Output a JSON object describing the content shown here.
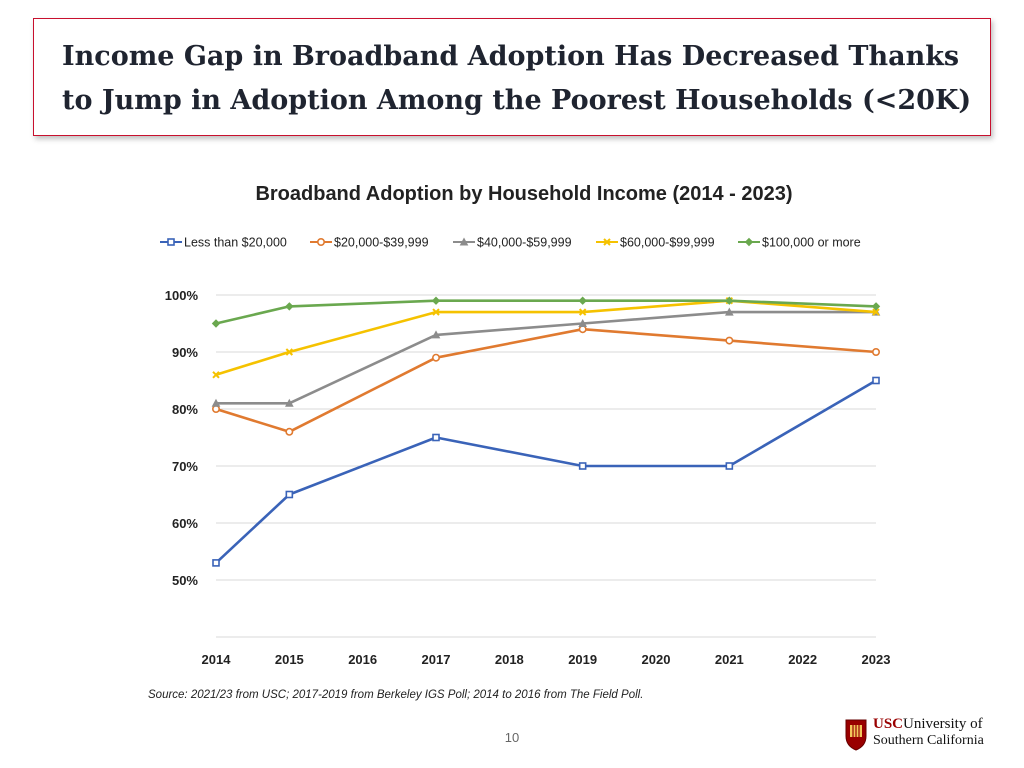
{
  "slide": {
    "title_line1": "Income Gap in Broadband Adoption Has Decreased Thanks",
    "title_line2": "to Jump in Adoption Among the Poorest Households (<20K)",
    "source": "Source: 2021/23 from USC; 2017-2019 from Berkeley IGS Poll; 2014 to 2016 from The Field Poll.",
    "page_number": "10",
    "logo": {
      "usc": "USC",
      "line1_rest": "University of",
      "line2": "Southern California"
    }
  },
  "chart_data": {
    "type": "line",
    "title": "Broadband Adoption by Household Income (2014 - 2023)",
    "x": [
      2014,
      2015,
      2016,
      2017,
      2018,
      2019,
      2020,
      2021,
      2022,
      2023
    ],
    "y_ticks": [
      "100%",
      "90%",
      "80%",
      "70%",
      "60%",
      "50%"
    ],
    "y_tick_values": [
      100,
      90,
      80,
      70,
      60,
      50
    ],
    "ylim": [
      40,
      100
    ],
    "legend_position": "top",
    "series": [
      {
        "name": "Less than $20,000",
        "color": "#3a63b8",
        "marker": "square",
        "points": [
          [
            2014,
            53
          ],
          [
            2015,
            65
          ],
          [
            2017,
            75
          ],
          [
            2019,
            70
          ],
          [
            2021,
            70
          ],
          [
            2023,
            85
          ]
        ]
      },
      {
        "name": "$20,000-$39,999",
        "color": "#e07a30",
        "marker": "circle",
        "points": [
          [
            2014,
            80
          ],
          [
            2015,
            76
          ],
          [
            2017,
            89
          ],
          [
            2019,
            94
          ],
          [
            2021,
            92
          ],
          [
            2023,
            90
          ]
        ]
      },
      {
        "name": "$40,000-$59,999",
        "color": "#8c8c8c",
        "marker": "triangle",
        "points": [
          [
            2014,
            81
          ],
          [
            2015,
            81
          ],
          [
            2017,
            93
          ],
          [
            2019,
            95
          ],
          [
            2021,
            97
          ],
          [
            2023,
            97
          ]
        ]
      },
      {
        "name": "$60,000-$99,999",
        "color": "#f5c200",
        "marker": "x",
        "points": [
          [
            2014,
            86
          ],
          [
            2015,
            90
          ],
          [
            2017,
            97
          ],
          [
            2019,
            97
          ],
          [
            2021,
            99
          ],
          [
            2023,
            97
          ]
        ]
      },
      {
        "name": "$100,000 or more",
        "color": "#6aa84f",
        "marker": "diamond",
        "points": [
          [
            2014,
            95
          ],
          [
            2015,
            98
          ],
          [
            2017,
            99
          ],
          [
            2019,
            99
          ],
          [
            2021,
            99
          ],
          [
            2023,
            98
          ]
        ]
      }
    ]
  }
}
